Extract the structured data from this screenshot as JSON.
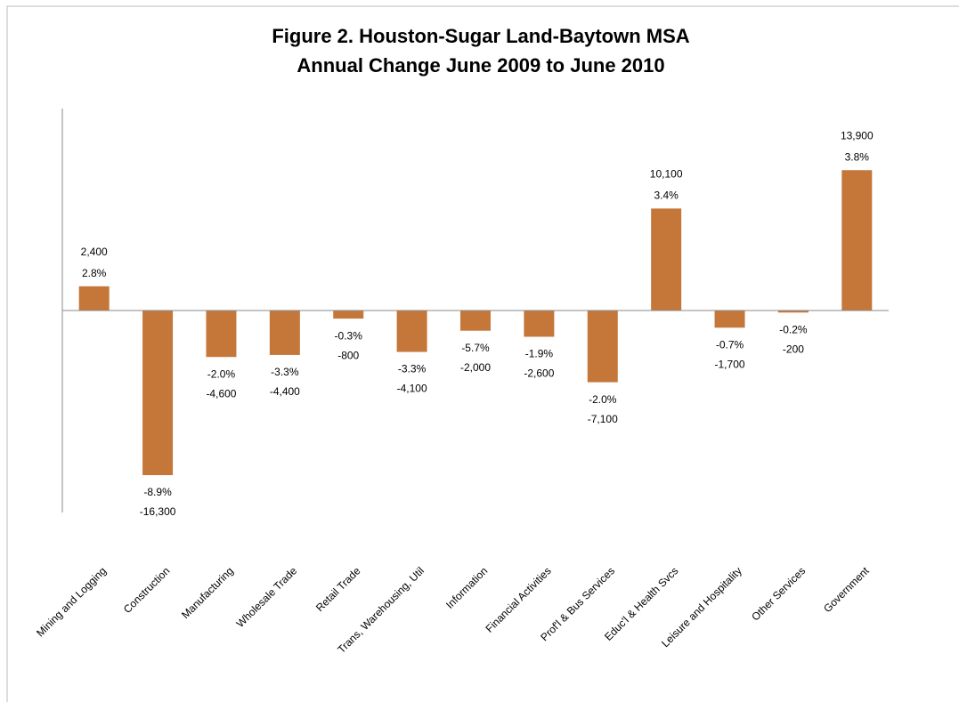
{
  "chart_data": {
    "type": "bar",
    "title": "Figure 2. Houston-Sugar Land-Baytown MSA",
    "subtitle": "Annual Change June 2009 to June 2010",
    "categories": [
      "Mining and Logging",
      "Construction",
      "Manufacturing",
      "Wholesale Trade",
      "Retail Trade",
      "Trans, Warehousing, Util",
      "Information",
      "Financial Activities",
      "Prof'l & Bus Services",
      "Educ'l & Health Svcs",
      "Leisure and Hospitality",
      "Other Services",
      "Government"
    ],
    "values": [
      2400,
      -16300,
      -4600,
      -4400,
      -800,
      -4100,
      -2000,
      -2600,
      -7100,
      10100,
      -1700,
      -200,
      13900
    ],
    "value_labels": [
      "2,400",
      "-16,300",
      "-4,600",
      "-4,400",
      "-800",
      "-4,100",
      "-2,000",
      "-2,600",
      "-7,100",
      "10,100",
      "-1,700",
      "-200",
      "13,900"
    ],
    "percent_labels": [
      "2.8%",
      "-8.9%",
      "-2.0%",
      "-3.3%",
      "-0.3%",
      "-3.3%",
      "-5.7%",
      "-1.9%",
      "-2.0%",
      "3.4%",
      "-0.7%",
      "-0.2%",
      "3.8%"
    ],
    "color": "#c5773a",
    "ylim": [
      -20000,
      20000
    ]
  }
}
